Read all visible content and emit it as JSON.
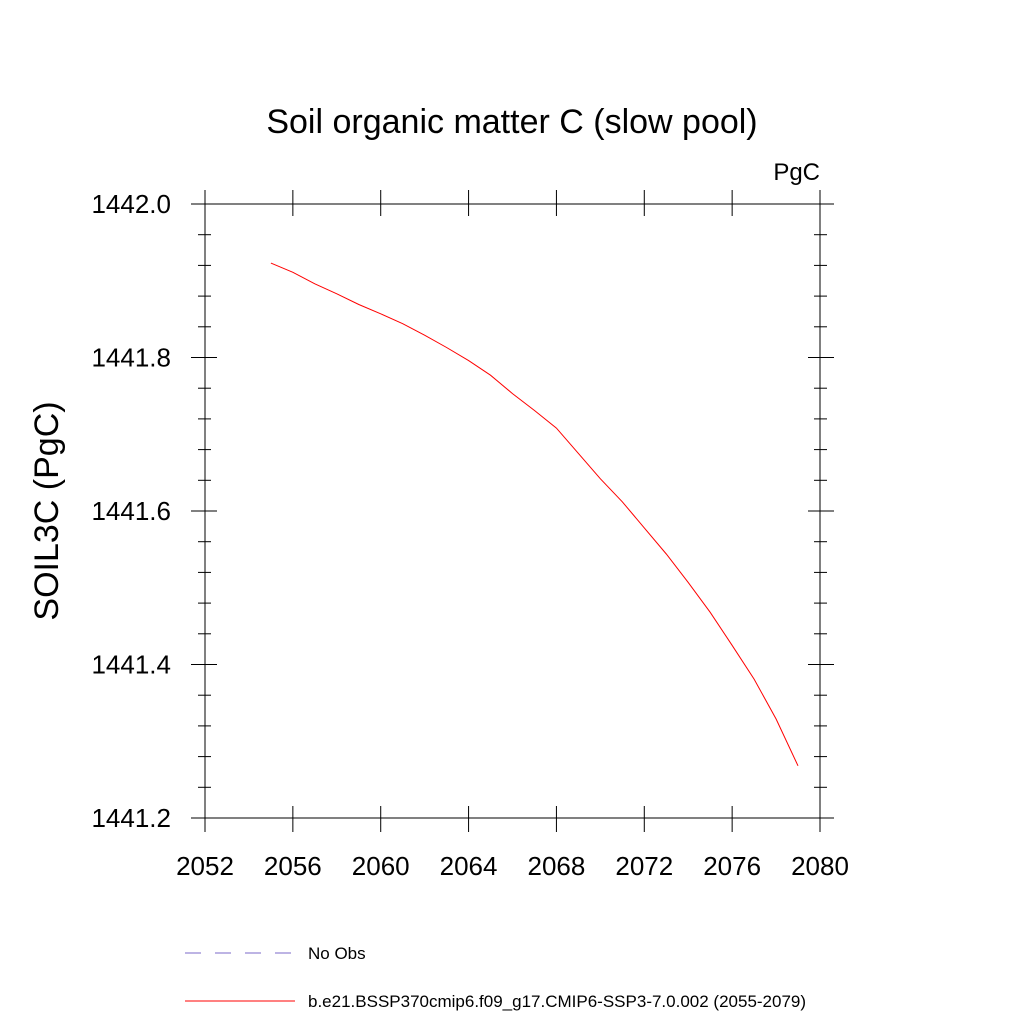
{
  "chart_data": {
    "type": "line",
    "title": "Soil organic matter C (slow pool)",
    "units": "PgC",
    "xlabel": "",
    "ylabel": "SOIL3C  (PgC)",
    "xlim": [
      2052,
      2080
    ],
    "ylim": [
      1441.2,
      1442.0
    ],
    "x_ticks": [
      2052,
      2056,
      2060,
      2064,
      2068,
      2072,
      2076,
      2080
    ],
    "x_tick_labels": [
      "2052",
      "2056",
      "2060",
      "2064",
      "2068",
      "2072",
      "2076",
      "2080"
    ],
    "y_ticks": [
      1441.2,
      1441.4,
      1441.6,
      1441.8,
      1442.0
    ],
    "y_tick_labels": [
      "1441.2",
      "1441.4",
      "1441.6",
      "1441.8",
      "1442.0"
    ],
    "grid": false,
    "legend_position": "bottom",
    "series": [
      {
        "name": "b.e21.BSSP370cmip6.f09_g17.CMIP6-SSP3-7.0.002 (2055-2079)",
        "color": "#ff0000",
        "style": "solid",
        "x": [
          2055,
          2056,
          2057,
          2058,
          2059,
          2060,
          2061,
          2062,
          2063,
          2064,
          2065,
          2066,
          2067,
          2068,
          2069,
          2070,
          2071,
          2072,
          2073,
          2074,
          2075,
          2076,
          2077,
          2078,
          2079
        ],
        "values": [
          1441.923,
          1441.911,
          1441.896,
          1441.883,
          1441.869,
          1441.857,
          1441.844,
          1441.829,
          1441.813,
          1441.796,
          1441.777,
          1441.753,
          1441.731,
          1441.708,
          1441.675,
          1441.642,
          1441.612,
          1441.578,
          1441.544,
          1441.507,
          1441.468,
          1441.425,
          1441.381,
          1441.329,
          1441.268
        ]
      }
    ],
    "legend": [
      {
        "label": "No Obs",
        "color": "#7b68c8",
        "style": "dashed"
      },
      {
        "label": "b.e21.BSSP370cmip6.f09_g17.CMIP6-SSP3-7.0.002 (2055-2079)",
        "color": "#ff0000",
        "style": "solid"
      }
    ]
  }
}
